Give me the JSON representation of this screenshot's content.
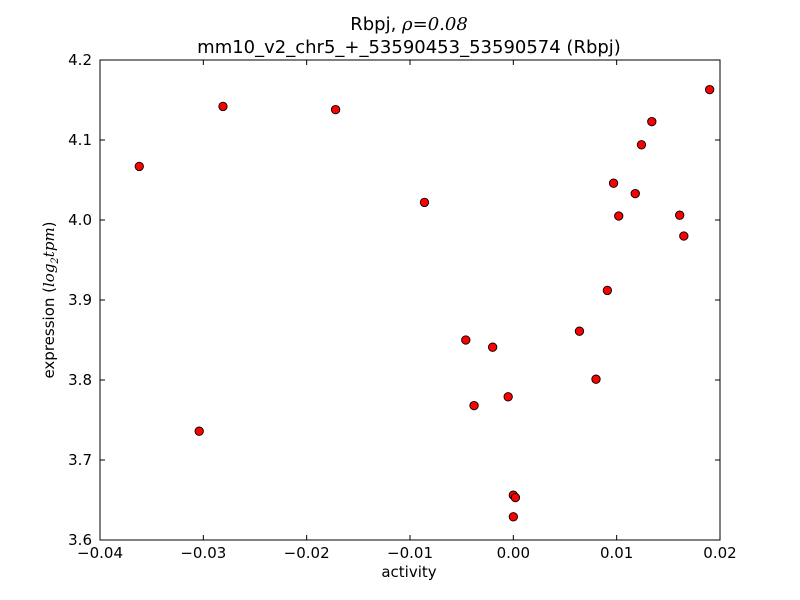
{
  "chart_data": {
    "type": "scatter",
    "title": {
      "line1_prefix": "Rbpj, ",
      "line1_math": "ρ=0.08",
      "line2": "mm10_v2_chr5_+_53590453_53590574 (Rbpj)"
    },
    "xlabel": "activity",
    "ylabel_prefix": "expression (",
    "ylabel_math": "log",
    "ylabel_sub": "2",
    "ylabel_math2": "tpm",
    "ylabel_suffix": ")",
    "xlim": [
      -0.04,
      0.02
    ],
    "ylim": [
      3.6,
      4.2
    ],
    "xticks": [
      -0.04,
      -0.03,
      -0.02,
      -0.01,
      0.0,
      0.01,
      0.02
    ],
    "xtick_labels": [
      "−0.04",
      "−0.03",
      "−0.02",
      "−0.01",
      "0.00",
      "0.01",
      "0.02"
    ],
    "yticks": [
      3.6,
      3.7,
      3.8,
      3.9,
      4.0,
      4.1,
      4.2
    ],
    "ytick_labels": [
      "3.6",
      "3.7",
      "3.8",
      "3.9",
      "4.0",
      "4.1",
      "4.2"
    ],
    "marker_color": "#ff0000",
    "marker_edge": "#000000",
    "grid": false,
    "points": [
      {
        "x": -0.0362,
        "y": 4.067
      },
      {
        "x": -0.0281,
        "y": 4.142
      },
      {
        "x": -0.0172,
        "y": 4.138
      },
      {
        "x": -0.0304,
        "y": 3.736
      },
      {
        "x": -0.0086,
        "y": 4.022
      },
      {
        "x": -0.0046,
        "y": 3.85
      },
      {
        "x": -0.0038,
        "y": 3.768
      },
      {
        "x": -0.002,
        "y": 3.841
      },
      {
        "x": -0.0005,
        "y": 3.779
      },
      {
        "x": 0.0,
        "y": 3.656
      },
      {
        "x": 0.0002,
        "y": 3.653
      },
      {
        "x": 0.0,
        "y": 3.629
      },
      {
        "x": 0.0064,
        "y": 3.861
      },
      {
        "x": 0.008,
        "y": 3.801
      },
      {
        "x": 0.0091,
        "y": 3.912
      },
      {
        "x": 0.0097,
        "y": 4.046
      },
      {
        "x": 0.0102,
        "y": 4.005
      },
      {
        "x": 0.0118,
        "y": 4.033
      },
      {
        "x": 0.0124,
        "y": 4.094
      },
      {
        "x": 0.0134,
        "y": 4.123
      },
      {
        "x": 0.0161,
        "y": 4.006
      },
      {
        "x": 0.0165,
        "y": 3.98
      },
      {
        "x": 0.019,
        "y": 4.163
      }
    ]
  }
}
